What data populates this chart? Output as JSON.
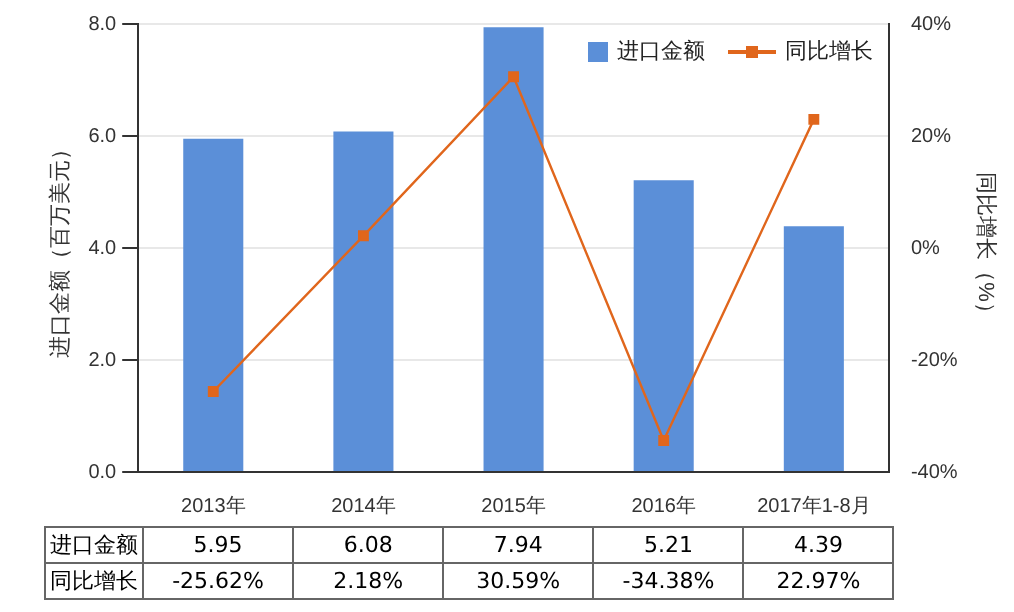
{
  "chart_data": {
    "type": "bar",
    "ylabel": "进口金额（百万美元）",
    "y2label": "同比增长（%）",
    "categories": [
      "2013年",
      "2014年",
      "2015年",
      "2016年",
      "2017年1-8月"
    ],
    "series": [
      {
        "name": "进口金额",
        "color": "#5b8fd8",
        "values": [
          5.95,
          6.08,
          7.94,
          5.21,
          4.39
        ],
        "value_labels": [
          "5.95",
          "6.08",
          "7.94",
          "5.21",
          "4.39"
        ]
      },
      {
        "name": "同比增长",
        "type": "line",
        "axis": "y2",
        "color": "#e0661c",
        "values": [
          -25.62,
          2.18,
          30.59,
          -34.38,
          22.97
        ],
        "value_labels": [
          "-25.62%",
          "2.18%",
          "30.59%",
          "-34.38%",
          "22.97%"
        ]
      }
    ],
    "ylim": [
      0,
      8
    ],
    "yticks": [
      {
        "value": 0,
        "label": "0.0"
      },
      {
        "value": 2,
        "label": "2.0"
      },
      {
        "value": 4,
        "label": "4.0"
      },
      {
        "value": 6,
        "label": "6.0"
      },
      {
        "value": 8,
        "label": "8.0"
      }
    ],
    "y2lim": [
      -40,
      40
    ],
    "y2ticks": [
      {
        "value": -40,
        "label": "-40%"
      },
      {
        "value": -20,
        "label": "-20%"
      },
      {
        "value": 0,
        "label": "0%"
      },
      {
        "value": 20,
        "label": "20%"
      },
      {
        "value": 40,
        "label": "40%"
      }
    ],
    "grid": "y",
    "legend": "top right",
    "marker": "square",
    "line_style": "solid"
  }
}
